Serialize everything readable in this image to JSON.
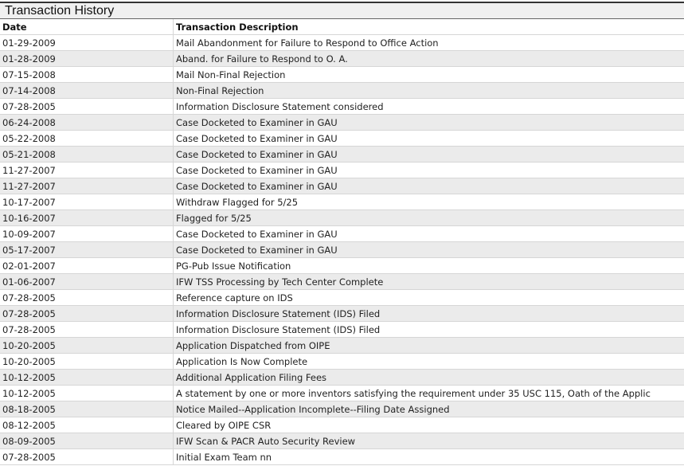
{
  "title": "Transaction History",
  "columns": {
    "date": "Date",
    "description": "Transaction Description"
  },
  "rows": [
    {
      "date": "01-29-2009",
      "description": "Mail Abandonment for Failure to Respond to Office Action"
    },
    {
      "date": "01-28-2009",
      "description": "Aband. for Failure to Respond to O. A."
    },
    {
      "date": "07-15-2008",
      "description": "Mail Non-Final Rejection"
    },
    {
      "date": "07-14-2008",
      "description": "Non-Final Rejection"
    },
    {
      "date": "07-28-2005",
      "description": "Information Disclosure Statement considered"
    },
    {
      "date": "06-24-2008",
      "description": "Case Docketed to Examiner in GAU"
    },
    {
      "date": "05-22-2008",
      "description": "Case Docketed to Examiner in GAU"
    },
    {
      "date": "05-21-2008",
      "description": "Case Docketed to Examiner in GAU"
    },
    {
      "date": "11-27-2007",
      "description": "Case Docketed to Examiner in GAU"
    },
    {
      "date": "11-27-2007",
      "description": "Case Docketed to Examiner in GAU"
    },
    {
      "date": "10-17-2007",
      "description": "Withdraw Flagged for 5/25"
    },
    {
      "date": "10-16-2007",
      "description": "Flagged for 5/25"
    },
    {
      "date": "10-09-2007",
      "description": "Case Docketed to Examiner in GAU"
    },
    {
      "date": "05-17-2007",
      "description": "Case Docketed to Examiner in GAU"
    },
    {
      "date": "02-01-2007",
      "description": "PG-Pub Issue Notification"
    },
    {
      "date": "01-06-2007",
      "description": "IFW TSS Processing by Tech Center Complete"
    },
    {
      "date": "07-28-2005",
      "description": "Reference capture on IDS"
    },
    {
      "date": "07-28-2005",
      "description": "Information Disclosure Statement (IDS) Filed"
    },
    {
      "date": "07-28-2005",
      "description": "Information Disclosure Statement (IDS) Filed"
    },
    {
      "date": "10-20-2005",
      "description": "Application Dispatched from OIPE"
    },
    {
      "date": "10-20-2005",
      "description": "Application Is Now Complete"
    },
    {
      "date": "10-12-2005",
      "description": "Additional Application Filing Fees"
    },
    {
      "date": "10-12-2005",
      "description": "A statement by one or more inventors satisfying the requirement under 35 USC 115, Oath of the Applic"
    },
    {
      "date": "08-18-2005",
      "description": "Notice Mailed--Application Incomplete--Filing Date Assigned"
    },
    {
      "date": "08-12-2005",
      "description": "Cleared by OIPE CSR"
    },
    {
      "date": "08-09-2005",
      "description": "IFW Scan & PACR Auto Security Review"
    },
    {
      "date": "07-28-2005",
      "description": "Initial Exam Team nn"
    }
  ]
}
